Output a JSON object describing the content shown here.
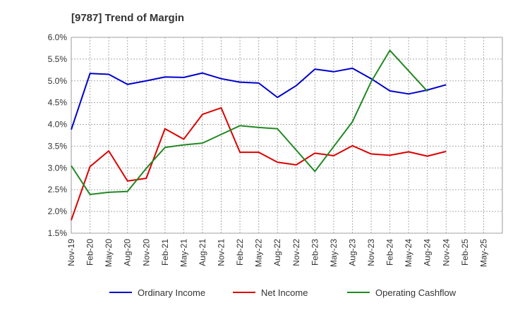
{
  "chart_data": {
    "type": "line",
    "title": "[9787]  Trend of Margin",
    "xlabel": "",
    "ylabel": "",
    "ylim": [
      1.5,
      6.0
    ],
    "yticks": [
      "1.5%",
      "2.0%",
      "2.5%",
      "3.0%",
      "3.5%",
      "4.0%",
      "4.5%",
      "5.0%",
      "5.5%",
      "6.0%"
    ],
    "ytick_values": [
      1.5,
      2.0,
      2.5,
      3.0,
      3.5,
      4.0,
      4.5,
      5.0,
      5.5,
      6.0
    ],
    "categories": [
      "Nov-19",
      "Feb-20",
      "May-20",
      "Aug-20",
      "Nov-20",
      "Feb-21",
      "May-21",
      "Aug-21",
      "Nov-21",
      "Feb-22",
      "May-22",
      "Aug-22",
      "Nov-22",
      "Feb-23",
      "May-23",
      "Aug-23",
      "Nov-23",
      "Feb-24",
      "May-24",
      "Aug-24",
      "Nov-24",
      "Feb-25",
      "May-25"
    ],
    "grid": true,
    "legend_position": "bottom",
    "series": [
      {
        "name": "Ordinary Income",
        "color": "#0000cc",
        "values": [
          3.88,
          5.17,
          5.15,
          4.92,
          5.0,
          5.09,
          5.08,
          5.18,
          5.05,
          4.97,
          4.95,
          4.62,
          4.89,
          5.27,
          5.21,
          5.29,
          5.05,
          4.77,
          4.7,
          4.79,
          4.91,
          null,
          null
        ]
      },
      {
        "name": "Net Income",
        "color": "#dd0000",
        "values": [
          1.8,
          3.03,
          3.39,
          2.7,
          2.76,
          3.9,
          3.66,
          4.23,
          4.38,
          3.36,
          3.36,
          3.13,
          3.07,
          3.34,
          3.28,
          3.51,
          3.32,
          3.29,
          3.37,
          3.27,
          3.38,
          null,
          null
        ]
      },
      {
        "name": "Operating Cashflow",
        "color": "#228822",
        "values": [
          3.05,
          2.39,
          2.44,
          2.46,
          2.99,
          3.47,
          3.53,
          3.57,
          3.77,
          3.97,
          3.93,
          3.9,
          3.41,
          2.92,
          3.49,
          4.06,
          4.98,
          5.7,
          5.23,
          4.76,
          null,
          null,
          null
        ]
      }
    ]
  }
}
